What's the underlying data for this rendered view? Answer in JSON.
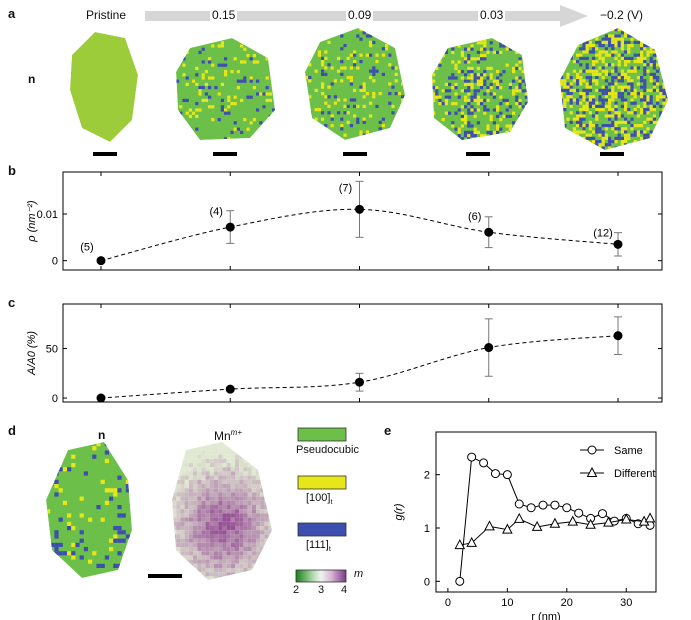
{
  "panels": {
    "a": "a",
    "b": "b",
    "c": "c",
    "d": "d",
    "e": "e"
  },
  "panel_a": {
    "row_label": "n",
    "stages": [
      "Pristine",
      "0.15",
      "0.09",
      "0.03",
      "−0.2 (V)"
    ]
  },
  "panel_d": {
    "map1_label": "n",
    "map2_label": "Mn",
    "map2_sup": "m+",
    "legend": [
      "Pseudocubic",
      "[100]",
      "[111]"
    ],
    "legend_subscript": "t",
    "colorbar_ticks": [
      "2",
      "3",
      "4"
    ],
    "colorbar_label": "m"
  },
  "colors": {
    "pseudocubic": "#6cc04a",
    "pristine": "#9ccc3a",
    "phase100": "#e6e619",
    "phase111": "#3c4fb0",
    "arrow": "#d6d6d6"
  },
  "chart_data": [
    {
      "panel": "b",
      "type": "scatter",
      "ylabel": "ρ (nm⁻²)",
      "y_ticks": [
        "0",
        "0.01"
      ],
      "ylim": [
        -0.002,
        0.019
      ],
      "points": [
        {
          "x": "Pristine",
          "y": 0.0,
          "err": 0.0,
          "label": "(5)"
        },
        {
          "x": "0.15",
          "y": 0.0072,
          "err": 0.0035,
          "label": "(4)"
        },
        {
          "x": "0.09",
          "y": 0.011,
          "err": 0.006,
          "label": "(7)"
        },
        {
          "x": "0.03",
          "y": 0.0061,
          "err": 0.0033,
          "label": "(6)"
        },
        {
          "x": "−0.2 (V)",
          "y": 0.0035,
          "err": 0.0025,
          "label": "(12)"
        }
      ]
    },
    {
      "panel": "c",
      "type": "scatter",
      "ylabel": "A/A0 (%)",
      "y_ticks": [
        "0",
        "50"
      ],
      "ylim": [
        -4,
        95
      ],
      "points": [
        {
          "x": "Pristine",
          "y": 0,
          "err": 0
        },
        {
          "x": "0.15",
          "y": 9,
          "err": 2
        },
        {
          "x": "0.09",
          "y": 16,
          "err": 9
        },
        {
          "x": "0.03",
          "y": 51,
          "err": 29
        },
        {
          "x": "−0.2 (V)",
          "y": 63,
          "err": 19
        }
      ]
    },
    {
      "panel": "e",
      "type": "line",
      "xlabel": "r (nm)",
      "ylabel": "g(r)",
      "x_ticks": [
        "0",
        "10",
        "20",
        "30"
      ],
      "y_ticks": [
        "0",
        "1",
        "2"
      ],
      "xlim": [
        -2,
        35
      ],
      "ylim": [
        -0.2,
        2.8
      ],
      "series": [
        {
          "name": "Same",
          "marker": "circle",
          "x": [
            2,
            4,
            6,
            8,
            10,
            12,
            14,
            16,
            18,
            20,
            22,
            24,
            26,
            28,
            30,
            32,
            34
          ],
          "y": [
            0,
            2.33,
            2.22,
            2.02,
            2.0,
            1.45,
            1.38,
            1.43,
            1.43,
            1.38,
            1.28,
            1.18,
            1.27,
            1.13,
            1.18,
            1.08,
            1.05
          ]
        },
        {
          "name": "Different",
          "marker": "triangle",
          "x": [
            2,
            4,
            7,
            10,
            12,
            15,
            18,
            21,
            24,
            27,
            30,
            33,
            34
          ],
          "y": [
            0.68,
            0.72,
            1.03,
            0.97,
            1.17,
            1.02,
            1.08,
            1.12,
            1.06,
            1.1,
            1.16,
            1.12,
            1.18
          ]
        }
      ]
    }
  ]
}
